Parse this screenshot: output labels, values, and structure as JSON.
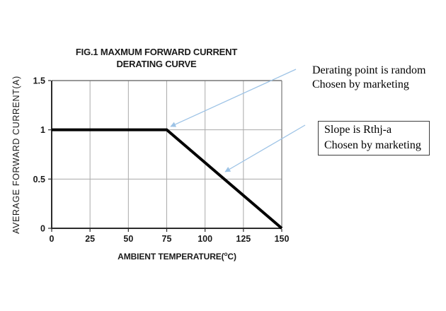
{
  "chart_data": {
    "type": "line",
    "title_line1": "FIG.1 MAXMUM FORWARD CURRENT",
    "title_line2": "DERATING CURVE",
    "xlabel_pre": "AMBIENT TEMPERATURE(",
    "xlabel_degree": "o",
    "xlabel_post": "C)",
    "ylabel": "AVERAGE FORWARD CURRENT(A)",
    "x_ticks": [
      0,
      25,
      50,
      75,
      100,
      125,
      150
    ],
    "y_ticks": [
      0,
      0.5,
      1,
      1.5
    ],
    "y_tick_labels": [
      "0",
      "0.5",
      "1",
      "1.5"
    ],
    "xlim": [
      0,
      150
    ],
    "ylim": [
      0,
      1.5
    ],
    "grid": true,
    "legend": "none",
    "series": [
      {
        "name": "average-forward-current-derating",
        "points": [
          [
            0,
            1
          ],
          [
            75,
            1
          ],
          [
            150,
            0
          ]
        ]
      }
    ]
  },
  "annotations": {
    "derating_note": {
      "line1": "Derating point is random",
      "line2": "Chosen by marketing"
    },
    "slope_note": {
      "line1": "Slope is Rthj-a",
      "line2": "Chosen by marketing"
    }
  },
  "colors": {
    "curve": "#000000",
    "grid": "#aaaaaa",
    "axis_dark": "#2b2b2b",
    "border_light": "#777777",
    "arrow": "#9dc3e6",
    "text": "#1a1a1a"
  }
}
